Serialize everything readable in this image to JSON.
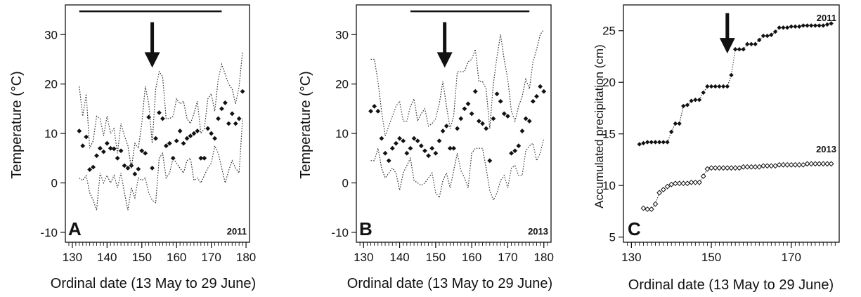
{
  "chart_data": [
    {
      "type": "scatter",
      "panel": "A",
      "year_label": "2011",
      "xlabel": "Ordinal date (13 May to 29 June)",
      "ylabel": "Temperature (°C)",
      "xlim": [
        128,
        181
      ],
      "ylim": [
        -12,
        36
      ],
      "xticks": [
        130,
        140,
        150,
        160,
        170,
        180
      ],
      "yticks": [
        -10,
        0,
        10,
        20,
        30
      ],
      "minor_ticks": true,
      "grid": false,
      "horizontal_bar": {
        "x_start": 132,
        "x_end": 173,
        "y": 34.7
      },
      "arrow": {
        "x": 153,
        "y_top": 32.5,
        "y_tip": 23.3
      },
      "series": [
        {
          "style": "points",
          "x": [
            132,
            133,
            134,
            135,
            136,
            137,
            138,
            139,
            140,
            141,
            142,
            143,
            144,
            145,
            146,
            147,
            148,
            149,
            150,
            151,
            152,
            153,
            154,
            155,
            156,
            157,
            158,
            159,
            160,
            161,
            162,
            163,
            164,
            165,
            166,
            167,
            168,
            169,
            170,
            171,
            172,
            173,
            174,
            175,
            176,
            177,
            178,
            179
          ],
          "values": [
            10.5,
            7.5,
            9.3,
            2.7,
            3.2,
            5.5,
            7.0,
            6.3,
            8.0,
            7.0,
            6.9,
            5.0,
            6.5,
            3.5,
            3.0,
            3.5,
            1.8,
            2.8,
            6.5,
            6.0,
            13.3,
            3.0,
            9.0,
            14.2,
            13.0,
            7.5,
            8.0,
            5.0,
            8.5,
            10.5,
            8.0,
            9.0,
            9.5,
            10.0,
            10.5,
            5.0,
            5.0,
            11.0,
            10.0,
            9.0,
            13.0,
            15.0,
            16.2,
            12.0,
            14.0,
            12.0,
            13.0,
            18.5
          ]
        },
        {
          "style": "dotted",
          "x": [
            132,
            133,
            134,
            135,
            136,
            137,
            138,
            139,
            140,
            141,
            142,
            143,
            144,
            145,
            146,
            147,
            148,
            149,
            150,
            151,
            152,
            153,
            154,
            155,
            156,
            157,
            158,
            159,
            160,
            161,
            162,
            163,
            164,
            165,
            166,
            167,
            168,
            169,
            170,
            171,
            172,
            173,
            174,
            175,
            176,
            177,
            178,
            179
          ],
          "values": [
            19.5,
            13.5,
            18.0,
            7.0,
            8.5,
            13.5,
            13.0,
            9.5,
            13.5,
            10.0,
            11.0,
            6.0,
            12.0,
            9.5,
            7.5,
            3.0,
            8.0,
            7.0,
            12.0,
            19.5,
            16.0,
            8.0,
            19.0,
            22.5,
            21.5,
            13.0,
            13.0,
            13.5,
            17.0,
            16.0,
            16.5,
            13.0,
            12.0,
            14.0,
            16.5,
            10.0,
            11.0,
            17.0,
            18.0,
            14.5,
            21.0,
            24.0,
            22.0,
            20.0,
            19.0,
            16.0,
            19.5,
            26.5
          ]
        },
        {
          "style": "dotted",
          "x": [
            132,
            133,
            134,
            135,
            136,
            137,
            138,
            139,
            140,
            141,
            142,
            143,
            144,
            145,
            146,
            147,
            148,
            149,
            150,
            151,
            152,
            153,
            154,
            155,
            156,
            157,
            158,
            159,
            160,
            161,
            162,
            163,
            164,
            165,
            166,
            167,
            168,
            169,
            170,
            171,
            172,
            173,
            174,
            175,
            176,
            177,
            178,
            179
          ],
          "values": [
            1.0,
            0.5,
            1.5,
            -2.0,
            -3.5,
            -5.5,
            2.0,
            0.0,
            1.5,
            0.0,
            1.5,
            -1.0,
            2.0,
            -2.0,
            -5.5,
            -1.0,
            -3.0,
            1.0,
            0.5,
            1.0,
            -2.0,
            -3.5,
            -4.0,
            5.0,
            6.0,
            1.0,
            2.0,
            5.0,
            4.0,
            3.0,
            2.0,
            4.5,
            5.0,
            0.5,
            1.0,
            0.0,
            1.5,
            3.0,
            4.0,
            7.5,
            6.0,
            3.0,
            0.0,
            2.5,
            4.5,
            3.0,
            2.0,
            13.0
          ]
        }
      ]
    },
    {
      "type": "scatter",
      "panel": "B",
      "year_label": "2013",
      "xlabel": "Ordinal date (13 May to 29 June)",
      "ylabel": "Temperature (°C)",
      "xlim": [
        128,
        182
      ],
      "ylim": [
        -12,
        36
      ],
      "xticks": [
        130,
        140,
        150,
        160,
        170,
        180
      ],
      "yticks": [
        -10,
        0,
        10,
        20,
        30
      ],
      "minor_ticks": true,
      "grid": false,
      "horizontal_bar": {
        "x_start": 143,
        "x_end": 176,
        "y": 34.7
      },
      "arrow": {
        "x": 152.5,
        "y_top": 32.5,
        "y_tip": 23.3
      },
      "series": [
        {
          "style": "points",
          "x": [
            132,
            133,
            134,
            135,
            136,
            137,
            138,
            139,
            140,
            141,
            142,
            143,
            144,
            145,
            146,
            147,
            148,
            149,
            150,
            151,
            152,
            153,
            154,
            155,
            156,
            157,
            158,
            159,
            160,
            161,
            162,
            163,
            164,
            165,
            166,
            167,
            168,
            169,
            170,
            171,
            172,
            173,
            174,
            175,
            176,
            177,
            178,
            179,
            180
          ],
          "values": [
            14.5,
            15.5,
            14.5,
            9.0,
            6.0,
            4.5,
            7.0,
            8.0,
            9.0,
            8.5,
            6.0,
            7.0,
            9.0,
            8.5,
            7.5,
            6.5,
            5.5,
            7.0,
            6.0,
            8.5,
            10.5,
            11.5,
            7.0,
            7.0,
            11.0,
            13.0,
            15.0,
            16.0,
            14.0,
            18.5,
            12.5,
            12.0,
            11.0,
            4.5,
            13.0,
            18.0,
            16.5,
            14.0,
            13.5,
            6.0,
            6.5,
            7.5,
            10.5,
            13.0,
            12.5,
            16.5,
            17.5,
            19.5,
            18.5
          ]
        },
        {
          "style": "dotted",
          "x": [
            132,
            133,
            134,
            135,
            136,
            137,
            138,
            139,
            140,
            141,
            142,
            143,
            144,
            145,
            146,
            147,
            148,
            149,
            150,
            151,
            152,
            153,
            154,
            155,
            156,
            157,
            158,
            159,
            160,
            161,
            162,
            163,
            164,
            165,
            166,
            167,
            168,
            169,
            170,
            171,
            172,
            173,
            174,
            175,
            176,
            177,
            178,
            179,
            180
          ],
          "values": [
            25.0,
            25.0,
            20.5,
            14.5,
            9.5,
            11.5,
            13.5,
            15.5,
            16.5,
            12.5,
            12.5,
            15.5,
            17.0,
            12.5,
            14.0,
            15.0,
            11.5,
            12.0,
            13.0,
            16.0,
            20.5,
            15.5,
            11.0,
            13.5,
            22.5,
            22.5,
            22.5,
            24.5,
            25.0,
            27.0,
            20.5,
            20.5,
            19.0,
            11.0,
            20.0,
            25.5,
            30.0,
            25.0,
            21.0,
            14.5,
            12.5,
            15.5,
            17.5,
            21.0,
            19.0,
            24.5,
            27.0,
            30.0,
            31.0
          ]
        },
        {
          "style": "dotted",
          "x": [
            132,
            133,
            134,
            135,
            136,
            137,
            138,
            139,
            140,
            141,
            142,
            143,
            144,
            145,
            146,
            147,
            148,
            149,
            150,
            151,
            152,
            153,
            154,
            155,
            156,
            157,
            158,
            159,
            160,
            161,
            162,
            163,
            164,
            165,
            166,
            167,
            168,
            169,
            170,
            171,
            172,
            173,
            174,
            175,
            176,
            177,
            178,
            179,
            180
          ],
          "values": [
            4.5,
            4.5,
            7.0,
            3.0,
            1.0,
            2.0,
            3.0,
            2.0,
            -1.5,
            2.0,
            3.5,
            5.0,
            0.5,
            0.0,
            -0.5,
            0.0,
            1.0,
            2.0,
            -2.0,
            -3.0,
            0.5,
            2.0,
            -1.0,
            2.5,
            6.0,
            2.5,
            1.0,
            -1.0,
            6.0,
            7.0,
            7.0,
            7.0,
            3.0,
            -1.5,
            -3.5,
            -2.0,
            0.5,
            1.5,
            -1.0,
            3.0,
            3.5,
            1.5,
            1.5,
            6.5,
            7.5,
            8.0,
            4.5,
            6.0,
            9.0
          ]
        }
      ]
    },
    {
      "type": "line",
      "panel": "C",
      "xlabel": "Ordinal date (13 May to 29 June)",
      "ylabel": "Accumulated precipitation (cm)",
      "xlim": [
        128,
        182
      ],
      "ylim": [
        4.5,
        27.5
      ],
      "xticks": [
        130,
        150,
        170
      ],
      "yticks": [
        5,
        10,
        15,
        20,
        25
      ],
      "minor_ticks": true,
      "grid": false,
      "arrow": {
        "x": 154,
        "y_top": 26.7,
        "y_tip": 22.8
      },
      "series": [
        {
          "name": "2011",
          "marker": "filled-diamond",
          "line": "dotted",
          "x": [
            132,
            133,
            134,
            135,
            136,
            137,
            138,
            139,
            140,
            141,
            142,
            143,
            144,
            145,
            146,
            147,
            148,
            149,
            150,
            151,
            152,
            153,
            154,
            155,
            156,
            157,
            158,
            159,
            160,
            161,
            162,
            163,
            164,
            165,
            166,
            167,
            168,
            169,
            170,
            171,
            172,
            173,
            174,
            175,
            176,
            177,
            178,
            179,
            180
          ],
          "values": [
            14.0,
            14.1,
            14.2,
            14.2,
            14.2,
            14.2,
            14.2,
            14.2,
            15.2,
            16.0,
            16.0,
            17.7,
            17.8,
            18.2,
            18.3,
            18.3,
            19.0,
            19.6,
            19.6,
            19.6,
            19.6,
            19.6,
            19.6,
            20.7,
            23.2,
            23.2,
            23.2,
            23.7,
            23.7,
            23.7,
            24.1,
            24.5,
            24.5,
            24.6,
            24.9,
            25.3,
            25.3,
            25.3,
            25.4,
            25.4,
            25.4,
            25.5,
            25.5,
            25.5,
            25.5,
            25.5,
            25.5,
            25.6,
            25.7
          ]
        },
        {
          "name": "2013",
          "marker": "open-diamond",
          "line": "dotted",
          "x": [
            133,
            134,
            135,
            136,
            137,
            138,
            139,
            140,
            141,
            142,
            143,
            144,
            145,
            146,
            147,
            148,
            149,
            150,
            151,
            152,
            153,
            154,
            155,
            156,
            157,
            158,
            159,
            160,
            161,
            162,
            163,
            164,
            165,
            166,
            167,
            168,
            169,
            170,
            171,
            172,
            173,
            174,
            175,
            176,
            177,
            178,
            179,
            180
          ],
          "values": [
            7.8,
            7.7,
            7.7,
            8.2,
            9.3,
            9.6,
            9.9,
            10.1,
            10.2,
            10.2,
            10.2,
            10.2,
            10.3,
            10.3,
            10.3,
            10.9,
            11.6,
            11.7,
            11.7,
            11.7,
            11.7,
            11.7,
            11.7,
            11.7,
            11.7,
            11.8,
            11.8,
            11.8,
            11.8,
            11.8,
            11.9,
            11.9,
            11.9,
            11.9,
            12.0,
            12.0,
            12.0,
            12.0,
            12.0,
            12.0,
            12.0,
            12.1,
            12.1,
            12.1,
            12.1,
            12.1,
            12.1,
            12.1
          ]
        }
      ]
    }
  ]
}
